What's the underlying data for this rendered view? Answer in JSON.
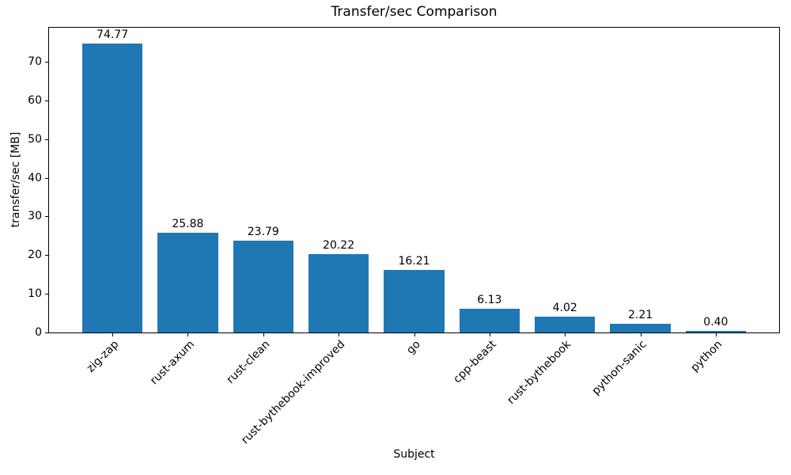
{
  "chart_data": {
    "type": "bar",
    "title": "Transfer/sec Comparison",
    "xlabel": "Subject",
    "ylabel": "transfer/sec [MB]",
    "categories": [
      "zig-zap",
      "rust-axum",
      "rust-clean",
      "rust-bythebook-improved",
      "go",
      "cpp-beast",
      "rust-bythebook",
      "python-sanic",
      "python"
    ],
    "values": [
      74.77,
      25.88,
      23.79,
      20.22,
      16.21,
      6.13,
      4.02,
      2.21,
      0.4
    ],
    "value_labels": [
      "74.77",
      "25.88",
      "23.79",
      "20.22",
      "16.21",
      "6.13",
      "4.02",
      "2.21",
      "0.40"
    ],
    "yticks": [
      0,
      10,
      20,
      30,
      40,
      50,
      60,
      70
    ],
    "ylim": [
      0,
      79
    ],
    "bar_color": "#1f77b4",
    "axis_color": "#000000",
    "grid": false,
    "x_tick_rotation": 45,
    "legend": null
  }
}
